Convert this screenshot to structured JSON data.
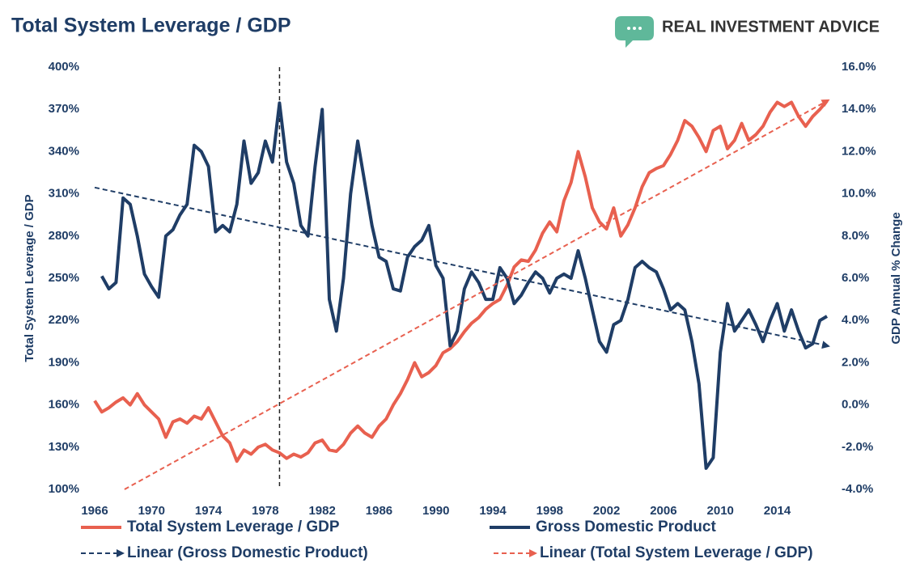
{
  "chart_data": {
    "type": "line",
    "title": "Total System Leverage / GDP",
    "brand": "REAL INVESTMENT ADVICE",
    "ylabel": "Total System Leverage / GDP",
    "y2label": "GDP Annual % Change",
    "xlim": [
      1966,
      2017.5
    ],
    "xticks": [
      1966,
      1970,
      1974,
      1978,
      1982,
      1986,
      1990,
      1994,
      1998,
      2002,
      2006,
      2010,
      2014
    ],
    "ylim": [
      100,
      400
    ],
    "yticks": [
      {
        "value": 100,
        "label": "100%"
      },
      {
        "value": 130,
        "label": "130%"
      },
      {
        "value": 160,
        "label": "160%"
      },
      {
        "value": 190,
        "label": "190%"
      },
      {
        "value": 220,
        "label": "220%"
      },
      {
        "value": 250,
        "label": "250%"
      },
      {
        "value": 280,
        "label": "280%"
      },
      {
        "value": 310,
        "label": "310%"
      },
      {
        "value": 340,
        "label": "340%"
      },
      {
        "value": 370,
        "label": "370%"
      },
      {
        "value": 400,
        "label": "400%"
      }
    ],
    "y2lim": [
      -4,
      16
    ],
    "y2ticks": [
      {
        "value": -4,
        "label": "-4.0%"
      },
      {
        "value": -2,
        "label": "-2.0%"
      },
      {
        "value": 0,
        "label": "0.0%"
      },
      {
        "value": 2,
        "label": "2.0%"
      },
      {
        "value": 4,
        "label": "4.0%"
      },
      {
        "value": 6,
        "label": "6.0%"
      },
      {
        "value": 8,
        "label": "8.0%"
      },
      {
        "value": 10,
        "label": "10.0%"
      },
      {
        "value": 12,
        "label": "12.0%"
      },
      {
        "value": 14,
        "label": "14.0%"
      },
      {
        "value": 16,
        "label": "16.0%"
      }
    ],
    "reference_lines": [
      {
        "x": 1979,
        "color": "#222222"
      }
    ],
    "x": [
      1966,
      1966.5,
      1967,
      1967.5,
      1968,
      1968.5,
      1969,
      1969.5,
      1970,
      1970.5,
      1971,
      1971.5,
      1972,
      1972.5,
      1973,
      1973.5,
      1974,
      1974.5,
      1975,
      1975.5,
      1976,
      1976.5,
      1977,
      1977.5,
      1978,
      1978.5,
      1979,
      1979.5,
      1980,
      1980.5,
      1981,
      1981.5,
      1982,
      1982.5,
      1983,
      1983.5,
      1984,
      1984.5,
      1985,
      1985.5,
      1986,
      1986.5,
      1987,
      1987.5,
      1988,
      1988.5,
      1989,
      1989.5,
      1990,
      1990.5,
      1991,
      1991.5,
      1992,
      1992.5,
      1993,
      1993.5,
      1994,
      1994.5,
      1995,
      1995.5,
      1996,
      1996.5,
      1997,
      1997.5,
      1998,
      1998.5,
      1999,
      1999.5,
      2000,
      2000.5,
      2001,
      2001.5,
      2002,
      2002.5,
      2003,
      2003.5,
      2004,
      2004.5,
      2005,
      2005.5,
      2006,
      2006.5,
      2007,
      2007.5,
      2008,
      2008.5,
      2009,
      2009.5,
      2010,
      2010.5,
      2011,
      2011.5,
      2012,
      2012.5,
      2013,
      2013.5,
      2014,
      2014.5,
      2015,
      2015.5,
      2016,
      2016.5,
      2017,
      2017.5
    ],
    "series": [
      {
        "name": "Total System Leverage / GDP",
        "color": "#e8604f",
        "axis": "y",
        "values": [
          163,
          155,
          158,
          162,
          165,
          160,
          168,
          160,
          155,
          150,
          137,
          148,
          150,
          147,
          152,
          150,
          158,
          148,
          138,
          133,
          120,
          128,
          125,
          130,
          132,
          128,
          126,
          122,
          125,
          123,
          126,
          133,
          135,
          128,
          127,
          132,
          140,
          145,
          140,
          137,
          145,
          150,
          160,
          168,
          178,
          190,
          180,
          183,
          188,
          197,
          200,
          205,
          212,
          218,
          222,
          228,
          232,
          235,
          245,
          258,
          263,
          262,
          270,
          282,
          290,
          283,
          305,
          318,
          340,
          322,
          300,
          290,
          285,
          300,
          280,
          288,
          300,
          315,
          325,
          328,
          330,
          338,
          348,
          362,
          358,
          350,
          340,
          355,
          358,
          342,
          348,
          360,
          348,
          352,
          358,
          368,
          375,
          372,
          375,
          365,
          358,
          365,
          370,
          376
        ]
      },
      {
        "name": "Gross Domestic Product",
        "color": "#1f3d66",
        "axis": "y2",
        "values": [
          null,
          6.1,
          5.5,
          5.8,
          9.8,
          9.5,
          8.0,
          6.2,
          5.6,
          5.1,
          8.0,
          8.3,
          9.0,
          9.5,
          12.3,
          12.0,
          11.3,
          8.2,
          8.5,
          8.2,
          9.5,
          12.5,
          10.5,
          11.0,
          12.5,
          11.5,
          14.3,
          11.5,
          10.5,
          8.5,
          8.0,
          11.3,
          14.0,
          5.0,
          3.5,
          6.0,
          10.0,
          12.5,
          10.5,
          8.5,
          7.0,
          6.8,
          5.5,
          5.4,
          7.0,
          7.5,
          7.8,
          8.5,
          6.6,
          6.0,
          2.8,
          3.5,
          5.5,
          6.3,
          5.8,
          5.0,
          5.0,
          6.5,
          6.0,
          4.8,
          5.2,
          5.8,
          6.3,
          6.0,
          5.3,
          6.0,
          6.2,
          6.0,
          7.3,
          6.0,
          4.5,
          3.0,
          2.5,
          3.8,
          4.0,
          5.0,
          6.5,
          6.8,
          6.5,
          6.3,
          5.5,
          4.5,
          4.8,
          4.5,
          3.0,
          1.0,
          -3.0,
          -2.5,
          2.5,
          4.8,
          3.5,
          4.0,
          4.5,
          3.8,
          3.0,
          4.0,
          4.8,
          3.5,
          4.5,
          3.5,
          2.7,
          2.9,
          4.0,
          4.2
        ]
      },
      {
        "name": "Linear (Gross Domestic Product)",
        "color": "#1f3d66",
        "axis": "y2",
        "dashed": true,
        "x": [
          1966,
          2017.5
        ],
        "values": [
          10.3,
          2.8
        ]
      },
      {
        "name": "Linear (Total System Leverage / GDP)",
        "color": "#e8604f",
        "axis": "y",
        "dashed": true,
        "x": [
          1968.1,
          2017.5
        ],
        "values": [
          100,
          376
        ]
      }
    ]
  }
}
